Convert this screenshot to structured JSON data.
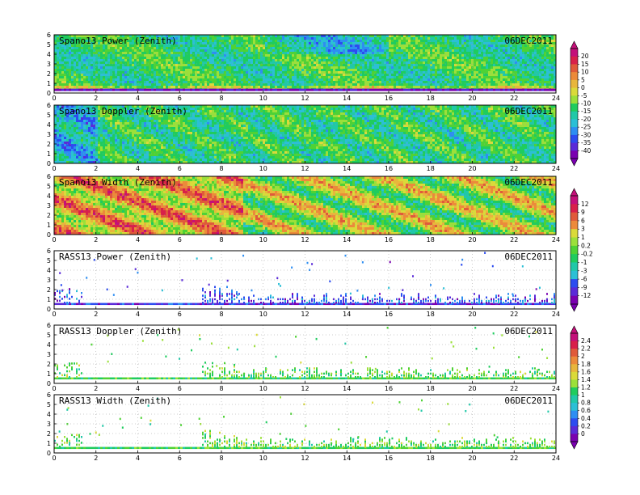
{
  "palette": [
    "#7a00b0",
    "#5a2ad8",
    "#2c4cf0",
    "#2d8ef2",
    "#2bbfd6",
    "#20c8a8",
    "#1fcc5e",
    "#4ed235",
    "#9be03a",
    "#dada3a",
    "#e8b63c",
    "#ec8a3a",
    "#e05a3a",
    "#d8204a",
    "#c4107a"
  ],
  "colorbars": [
    {
      "labels": [
        "20",
        "15",
        "10",
        "5",
        "0",
        "-5",
        "-10",
        "-15",
        "-20",
        "-25",
        "-30",
        "-35",
        "-40"
      ]
    },
    {
      "labels": [
        "12",
        "9",
        "6",
        "3",
        "1",
        "0.2",
        "-0.2",
        "-1",
        "-3",
        "-6",
        "-9",
        "-12"
      ]
    },
    {
      "labels": [
        "2.4",
        "2.2",
        "2",
        "1.8",
        "1.6",
        "1.4",
        "1.2",
        "1",
        "0.8",
        "0.6",
        "0.4",
        "0.2",
        "0"
      ]
    }
  ],
  "chart_data": [
    {
      "type": "heatmap",
      "title": "Spano13 Power (Zenith)",
      "date": "06DEC2011",
      "x_range": [
        0,
        24
      ],
      "y_range": [
        0,
        6
      ],
      "x_ticks": [
        "0",
        "2",
        "4",
        "6",
        "8",
        "10",
        "12",
        "14",
        "16",
        "18",
        "20",
        "22",
        "24"
      ],
      "y_ticks": [
        "0",
        "1",
        "2",
        "3",
        "4",
        "5",
        "6"
      ],
      "colorbar": 0
    },
    {
      "type": "heatmap",
      "title": "Spano13 Doppler (Zenith)",
      "date": "06DEC2011",
      "x_range": [
        0,
        24
      ],
      "y_range": [
        0,
        6
      ],
      "x_ticks": [
        "0",
        "2",
        "4",
        "6",
        "8",
        "10",
        "12",
        "14",
        "16",
        "18",
        "20",
        "22",
        "24"
      ],
      "y_ticks": [
        "0",
        "1",
        "2",
        "3",
        "4",
        "5",
        "6"
      ],
      "colorbar": 0
    },
    {
      "type": "heatmap",
      "title": "Spano13 Width (Zenith)",
      "date": "06DEC2011",
      "x_range": [
        0,
        24
      ],
      "y_range": [
        0,
        6
      ],
      "x_ticks": [
        "0",
        "2",
        "4",
        "6",
        "8",
        "10",
        "12",
        "14",
        "16",
        "18",
        "20",
        "22",
        "24"
      ],
      "y_ticks": [
        "0",
        "1",
        "2",
        "3",
        "4",
        "5",
        "6"
      ],
      "colorbar": 1
    },
    {
      "type": "heatmap",
      "title": "RASS13 Power (Zenith)",
      "date": "06DEC2011",
      "x_range": [
        0,
        24
      ],
      "y_range": [
        0,
        6
      ],
      "x_ticks": [
        "0",
        "2",
        "4",
        "6",
        "8",
        "10",
        "12",
        "14",
        "16",
        "18",
        "20",
        "22",
        "24"
      ],
      "y_ticks": [
        "0",
        "1",
        "2",
        "3",
        "4",
        "5",
        "6"
      ],
      "colorbar": 1
    },
    {
      "type": "heatmap",
      "title": "RASS13 Doppler (Zenith)",
      "date": "06DEC2011",
      "x_range": [
        0,
        24
      ],
      "y_range": [
        0,
        6
      ],
      "x_ticks": [
        "0",
        "2",
        "4",
        "6",
        "8",
        "10",
        "12",
        "14",
        "16",
        "18",
        "20",
        "22",
        "24"
      ],
      "y_ticks": [
        "0",
        "1",
        "2",
        "3",
        "4",
        "5",
        "6"
      ],
      "colorbar": 2
    },
    {
      "type": "heatmap",
      "title": "RASS13 Width (Zenith)",
      "date": "06DEC2011",
      "x_range": [
        0,
        24
      ],
      "y_range": [
        0,
        6
      ],
      "x_ticks": [
        "0",
        "2",
        "4",
        "6",
        "8",
        "10",
        "12",
        "14",
        "16",
        "18",
        "20",
        "22",
        "24"
      ],
      "y_ticks": [
        "0",
        "1",
        "2",
        "3",
        "4",
        "5",
        "6"
      ],
      "colorbar": 2
    }
  ]
}
